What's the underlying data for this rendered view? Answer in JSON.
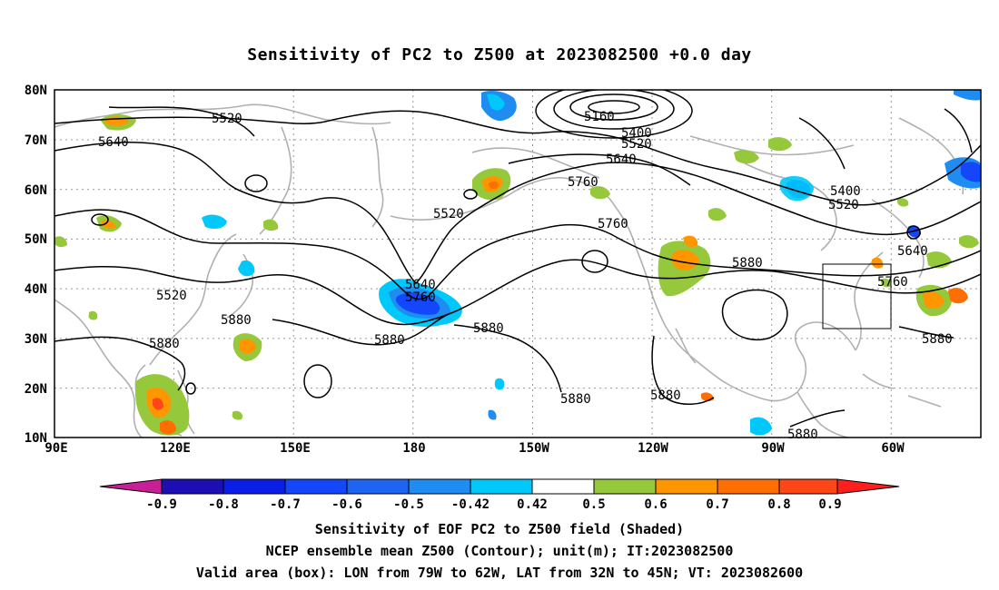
{
  "title": "Sensitivity of PC2 to Z500 at 2023082500 +0.0 day",
  "latitude_labels": [
    "80N",
    "70N",
    "60N",
    "50N",
    "40N",
    "30N",
    "20N",
    "10N"
  ],
  "longitude_labels": [
    "90E",
    "120E",
    "150E",
    "180",
    "150W",
    "120W",
    "90W",
    "60W"
  ],
  "contour_labels": [
    {
      "text": "5160"
    },
    {
      "text": "5400"
    },
    {
      "text": "5520"
    },
    {
      "text": "5520"
    },
    {
      "text": "5640"
    },
    {
      "text": "5640"
    },
    {
      "text": "5520"
    },
    {
      "text": "5760"
    },
    {
      "text": "5760"
    },
    {
      "text": "5880"
    },
    {
      "text": "5400"
    },
    {
      "text": "5520"
    },
    {
      "text": "5640"
    },
    {
      "text": "5760"
    },
    {
      "text": "5640"
    },
    {
      "text": "5760"
    },
    {
      "text": "5880"
    },
    {
      "text": "5880"
    },
    {
      "text": "5880"
    },
    {
      "text": "5880"
    },
    {
      "text": "5880"
    },
    {
      "text": "5880"
    },
    {
      "text": "5880"
    },
    {
      "text": "5880"
    },
    {
      "text": "5520"
    }
  ],
  "colorbar": {
    "colors": [
      "#c81e96",
      "#1e0fb4",
      "#0a1ee6",
      "#1446fa",
      "#1e64f0",
      "#1e8cf0",
      "#00c8fa",
      "#ffffff",
      "#96c83c",
      "#ff9600",
      "#ff6e00",
      "#ff4616",
      "#ff1e1e",
      "#ff0000",
      "#f0a0c8"
    ],
    "tick_labels": [
      "-0.9",
      "-0.8",
      "-0.7",
      "-0.6",
      "-0.5",
      "-0.42",
      "0.42",
      "0.5",
      "0.6",
      "0.7",
      "0.8",
      "0.9"
    ]
  },
  "footer": {
    "line1": "Sensitivity of EOF PC2 to Z500 field (Shaded)",
    "line2": "NCEP ensemble mean Z500 (Contour); unit(m); IT:2023082500",
    "line3": "Valid area (box): LON from 79W to 62W, LAT from 32N to 45N; VT: 2023082600"
  }
}
